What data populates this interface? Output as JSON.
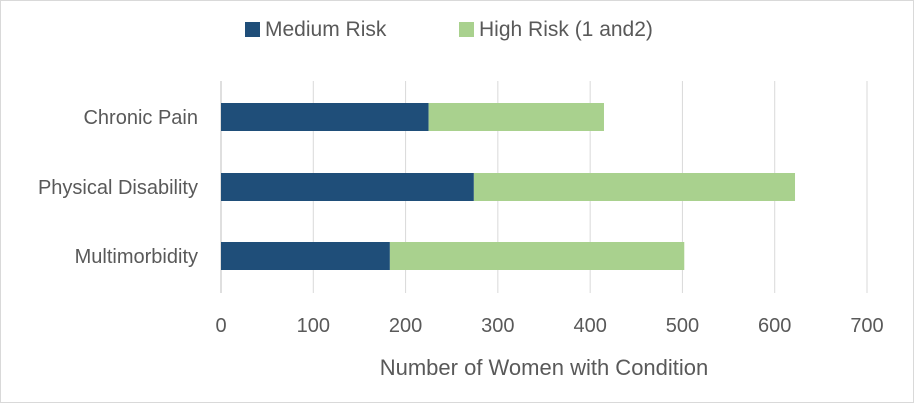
{
  "chart_data": {
    "type": "bar",
    "orientation": "horizontal",
    "stacked": true,
    "categories": [
      "Chronic Pain",
      "Physical Disability",
      "Multimorbidity"
    ],
    "series": [
      {
        "name": "Medium Risk",
        "values": [
          225,
          274,
          183
        ],
        "color": "#1f4e79"
      },
      {
        "name": "High Risk (1 and2)",
        "values": [
          190,
          348,
          319
        ],
        "color": "#a9d18e"
      }
    ],
    "xlabel": "Number of Women with Condition",
    "ylabel": "",
    "xlim": [
      0,
      700
    ],
    "xticks": [
      "0",
      "100",
      "200",
      "300",
      "400",
      "500",
      "600",
      "700"
    ],
    "grid": "vertical",
    "legend": "top-center"
  }
}
